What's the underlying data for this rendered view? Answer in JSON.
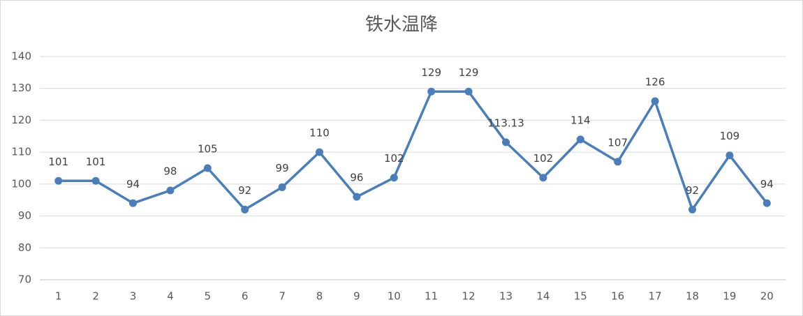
{
  "chart_data": {
    "type": "line",
    "title": "铁水温降",
    "categories": [
      "1",
      "2",
      "3",
      "4",
      "5",
      "6",
      "7",
      "8",
      "9",
      "10",
      "11",
      "12",
      "13",
      "14",
      "15",
      "16",
      "17",
      "18",
      "19",
      "20"
    ],
    "values": [
      101,
      101,
      94,
      98,
      105,
      92,
      99,
      110,
      96,
      102,
      129,
      129,
      113.13,
      102,
      114,
      107,
      126,
      92,
      109,
      94
    ],
    "color": "#4a7ebb",
    "ylim": [
      70,
      140
    ],
    "yticks": [
      70,
      80,
      90,
      100,
      110,
      120,
      130,
      140
    ],
    "grid": true
  }
}
